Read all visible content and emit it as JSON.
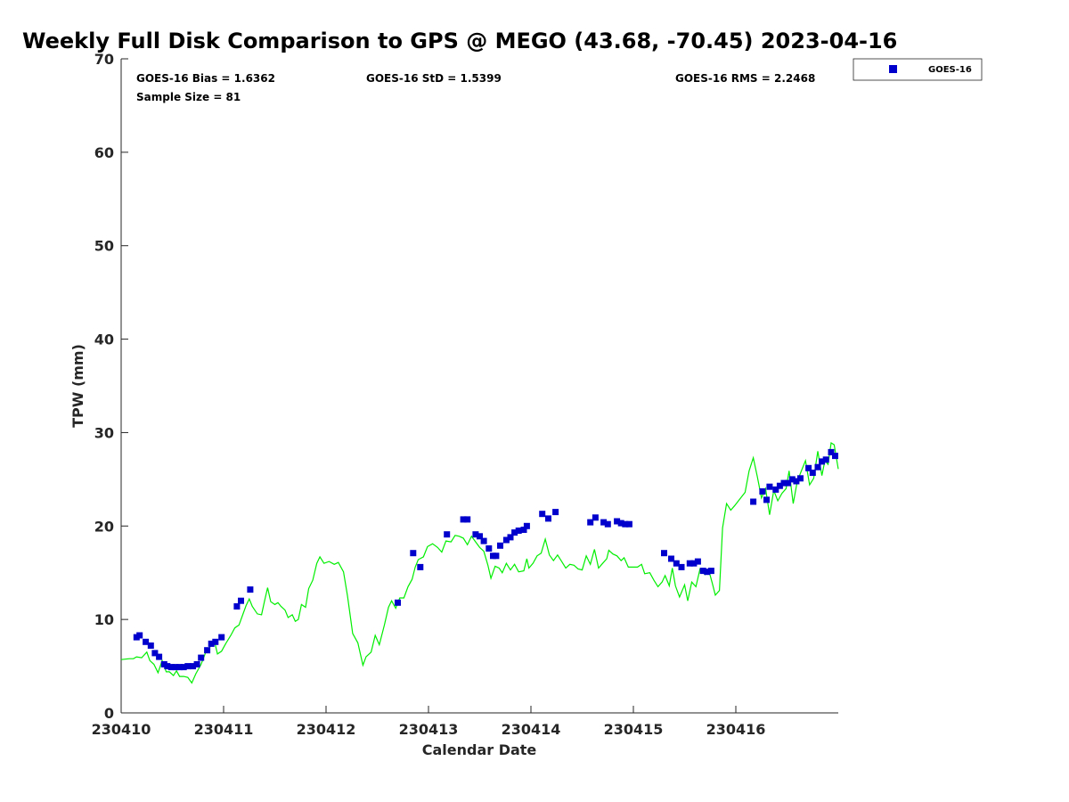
{
  "chart_data": {
    "type": "scatter",
    "title": "Weekly Full Disk Comparison to GPS @ MEGO (43.68, -70.45) 2023-04-16",
    "xlabel": "Calendar Date",
    "ylabel": "TPW (mm)",
    "xlim": [
      230410,
      230417
    ],
    "ylim": [
      0,
      70
    ],
    "x_ticks": [
      {
        "value": 230410,
        "label": "230410"
      },
      {
        "value": 230411,
        "label": "230411"
      },
      {
        "value": 230412,
        "label": "230412"
      },
      {
        "value": 230413,
        "label": "230413"
      },
      {
        "value": 230414,
        "label": "230414"
      },
      {
        "value": 230415,
        "label": "230415"
      },
      {
        "value": 230416,
        "label": "230416"
      }
    ],
    "y_ticks": [
      {
        "value": 0,
        "label": "0"
      },
      {
        "value": 10,
        "label": "10"
      },
      {
        "value": 20,
        "label": "20"
      },
      {
        "value": 30,
        "label": "30"
      },
      {
        "value": 40,
        "label": "40"
      },
      {
        "value": 50,
        "label": "50"
      },
      {
        "value": 60,
        "label": "60"
      },
      {
        "value": 70,
        "label": "70"
      }
    ],
    "stats": {
      "bias": "GOES-16 Bias = 1.6362",
      "std": "GOES-16 StD = 1.5399",
      "rms": "GOES-16 RMS = 2.2468",
      "sample": "Sample Size = 81"
    },
    "legend": {
      "position": "top-right",
      "entries": [
        {
          "label": "GOES-16",
          "color": "#0000cc",
          "marker": "square"
        }
      ]
    },
    "series": [
      {
        "name": "GOES-16",
        "kind": "scatter",
        "color": "#0000cc",
        "points": [
          [
            0.15,
            8.1
          ],
          [
            0.18,
            8.3
          ],
          [
            0.24,
            7.6
          ],
          [
            0.29,
            7.2
          ],
          [
            0.33,
            6.4
          ],
          [
            0.37,
            6.0
          ],
          [
            0.42,
            5.2
          ],
          [
            0.45,
            5.0
          ],
          [
            0.49,
            4.9
          ],
          [
            0.53,
            4.9
          ],
          [
            0.57,
            4.9
          ],
          [
            0.61,
            4.9
          ],
          [
            0.65,
            5.0
          ],
          [
            0.7,
            5.0
          ],
          [
            0.74,
            5.2
          ],
          [
            0.78,
            5.9
          ],
          [
            0.84,
            6.7
          ],
          [
            0.88,
            7.4
          ],
          [
            0.92,
            7.6
          ],
          [
            0.98,
            8.1
          ],
          [
            1.13,
            11.4
          ],
          [
            1.17,
            12.0
          ],
          [
            1.26,
            13.2
          ],
          [
            2.7,
            11.8
          ],
          [
            2.85,
            17.1
          ],
          [
            2.92,
            15.6
          ],
          [
            3.18,
            19.1
          ],
          [
            3.34,
            20.7
          ],
          [
            3.38,
            20.7
          ],
          [
            3.46,
            19.1
          ],
          [
            3.5,
            18.9
          ],
          [
            3.54,
            18.4
          ],
          [
            3.59,
            17.6
          ],
          [
            3.63,
            16.8
          ],
          [
            3.66,
            16.8
          ],
          [
            3.7,
            17.9
          ],
          [
            3.76,
            18.5
          ],
          [
            3.8,
            18.8
          ],
          [
            3.84,
            19.3
          ],
          [
            3.88,
            19.5
          ],
          [
            3.93,
            19.6
          ],
          [
            3.96,
            20.0
          ],
          [
            4.11,
            21.3
          ],
          [
            4.17,
            20.8
          ],
          [
            4.24,
            21.5
          ],
          [
            4.58,
            20.4
          ],
          [
            4.63,
            20.9
          ],
          [
            4.71,
            20.4
          ],
          [
            4.75,
            20.2
          ],
          [
            4.84,
            20.5
          ],
          [
            4.88,
            20.3
          ],
          [
            4.92,
            20.2
          ],
          [
            4.96,
            20.2
          ],
          [
            5.3,
            17.1
          ],
          [
            5.37,
            16.5
          ],
          [
            5.42,
            16.0
          ],
          [
            5.47,
            15.6
          ],
          [
            5.55,
            16.0
          ],
          [
            5.59,
            16.0
          ],
          [
            5.63,
            16.2
          ],
          [
            5.68,
            15.2
          ],
          [
            5.72,
            15.1
          ],
          [
            5.76,
            15.2
          ],
          [
            6.17,
            22.6
          ],
          [
            6.26,
            23.7
          ],
          [
            6.3,
            22.8
          ],
          [
            6.33,
            24.2
          ],
          [
            6.39,
            23.9
          ],
          [
            6.43,
            24.3
          ],
          [
            6.47,
            24.6
          ],
          [
            6.51,
            24.6
          ],
          [
            6.55,
            25.0
          ],
          [
            6.59,
            24.8
          ],
          [
            6.63,
            25.1
          ],
          [
            6.71,
            26.2
          ],
          [
            6.75,
            25.7
          ],
          [
            6.8,
            26.3
          ],
          [
            6.84,
            26.9
          ],
          [
            6.88,
            27.1
          ],
          [
            6.93,
            27.9
          ],
          [
            6.97,
            27.5
          ]
        ]
      },
      {
        "name": "GPS",
        "kind": "line",
        "color": "#00ee00",
        "points": [
          [
            0.0,
            5.7
          ],
          [
            0.08,
            5.8
          ],
          [
            0.12,
            5.8
          ],
          [
            0.15,
            6.0
          ],
          [
            0.2,
            5.9
          ],
          [
            0.25,
            6.5
          ],
          [
            0.28,
            5.6
          ],
          [
            0.32,
            5.2
          ],
          [
            0.36,
            4.3
          ],
          [
            0.4,
            5.6
          ],
          [
            0.44,
            4.4
          ],
          [
            0.47,
            4.4
          ],
          [
            0.51,
            4.0
          ],
          [
            0.54,
            4.5
          ],
          [
            0.57,
            3.9
          ],
          [
            0.61,
            3.9
          ],
          [
            0.65,
            3.8
          ],
          [
            0.69,
            3.2
          ],
          [
            0.73,
            4.2
          ],
          [
            0.78,
            5.2
          ],
          [
            0.83,
            6.6
          ],
          [
            0.87,
            7.1
          ],
          [
            0.91,
            7.7
          ],
          [
            0.94,
            6.3
          ],
          [
            0.98,
            6.6
          ],
          [
            1.02,
            7.4
          ],
          [
            1.07,
            8.3
          ],
          [
            1.11,
            9.1
          ],
          [
            1.15,
            9.4
          ],
          [
            1.18,
            10.3
          ],
          [
            1.22,
            11.5
          ],
          [
            1.25,
            12.2
          ],
          [
            1.28,
            11.4
          ],
          [
            1.33,
            10.6
          ],
          [
            1.37,
            10.5
          ],
          [
            1.4,
            12.0
          ],
          [
            1.43,
            13.4
          ],
          [
            1.46,
            11.9
          ],
          [
            1.5,
            11.6
          ],
          [
            1.53,
            11.8
          ],
          [
            1.56,
            11.4
          ],
          [
            1.6,
            11.0
          ],
          [
            1.63,
            10.2
          ],
          [
            1.67,
            10.5
          ],
          [
            1.7,
            9.8
          ],
          [
            1.73,
            10.0
          ],
          [
            1.76,
            11.6
          ],
          [
            1.8,
            11.3
          ],
          [
            1.83,
            13.3
          ],
          [
            1.87,
            14.2
          ],
          [
            1.91,
            16.0
          ],
          [
            1.94,
            16.7
          ],
          [
            1.98,
            16.0
          ],
          [
            2.03,
            16.2
          ],
          [
            2.08,
            15.9
          ],
          [
            2.12,
            16.1
          ],
          [
            2.17,
            15.1
          ],
          [
            2.21,
            12.5
          ],
          [
            2.26,
            8.5
          ],
          [
            2.31,
            7.5
          ],
          [
            2.36,
            5.1
          ],
          [
            2.39,
            6.0
          ],
          [
            2.44,
            6.5
          ],
          [
            2.48,
            8.3
          ],
          [
            2.52,
            7.3
          ],
          [
            2.57,
            9.4
          ],
          [
            2.61,
            11.3
          ],
          [
            2.64,
            12.0
          ],
          [
            2.68,
            11.2
          ],
          [
            2.72,
            12.3
          ],
          [
            2.76,
            12.3
          ],
          [
            2.8,
            13.5
          ],
          [
            2.84,
            14.3
          ],
          [
            2.87,
            15.6
          ],
          [
            2.9,
            16.4
          ],
          [
            2.95,
            16.7
          ],
          [
            2.99,
            17.8
          ],
          [
            3.04,
            18.1
          ],
          [
            3.09,
            17.7
          ],
          [
            3.13,
            17.2
          ],
          [
            3.17,
            18.4
          ],
          [
            3.22,
            18.3
          ],
          [
            3.26,
            19.0
          ],
          [
            3.3,
            18.9
          ],
          [
            3.34,
            18.7
          ],
          [
            3.38,
            18.0
          ],
          [
            3.42,
            18.9
          ],
          [
            3.46,
            18.3
          ],
          [
            3.5,
            17.7
          ],
          [
            3.54,
            17.3
          ],
          [
            3.58,
            15.8
          ],
          [
            3.61,
            14.4
          ],
          [
            3.65,
            15.7
          ],
          [
            3.69,
            15.5
          ],
          [
            3.72,
            15.0
          ],
          [
            3.76,
            16.0
          ],
          [
            3.8,
            15.3
          ],
          [
            3.84,
            15.9
          ],
          [
            3.88,
            15.1
          ],
          [
            3.93,
            15.2
          ],
          [
            3.96,
            16.5
          ],
          [
            3.98,
            15.5
          ],
          [
            4.02,
            16.0
          ],
          [
            4.06,
            16.8
          ],
          [
            4.1,
            17.1
          ],
          [
            4.14,
            18.6
          ],
          [
            4.18,
            16.9
          ],
          [
            4.22,
            16.3
          ],
          [
            4.26,
            16.9
          ],
          [
            4.3,
            16.2
          ],
          [
            4.34,
            15.5
          ],
          [
            4.38,
            15.9
          ],
          [
            4.42,
            15.8
          ],
          [
            4.46,
            15.4
          ],
          [
            4.5,
            15.3
          ],
          [
            4.54,
            16.8
          ],
          [
            4.58,
            15.9
          ],
          [
            4.62,
            17.5
          ],
          [
            4.66,
            15.5
          ],
          [
            4.7,
            16.0
          ],
          [
            4.74,
            16.5
          ],
          [
            4.76,
            17.4
          ],
          [
            4.8,
            17.0
          ],
          [
            4.84,
            16.8
          ],
          [
            4.88,
            16.3
          ],
          [
            4.91,
            16.6
          ],
          [
            4.95,
            15.6
          ],
          [
            5.0,
            15.6
          ],
          [
            5.04,
            15.6
          ],
          [
            5.08,
            15.9
          ],
          [
            5.11,
            14.9
          ],
          [
            5.16,
            15.0
          ],
          [
            5.2,
            14.2
          ],
          [
            5.24,
            13.5
          ],
          [
            5.28,
            14.0
          ],
          [
            5.31,
            14.7
          ],
          [
            5.35,
            13.6
          ],
          [
            5.38,
            15.5
          ],
          [
            5.41,
            13.6
          ],
          [
            5.45,
            12.4
          ],
          [
            5.5,
            13.7
          ],
          [
            5.53,
            12.0
          ],
          [
            5.57,
            14.0
          ],
          [
            5.61,
            13.5
          ],
          [
            5.65,
            15.4
          ],
          [
            5.7,
            14.8
          ],
          [
            5.74,
            15.1
          ],
          [
            5.77,
            13.9
          ],
          [
            5.8,
            12.6
          ],
          [
            5.84,
            13.1
          ],
          [
            5.87,
            19.8
          ],
          [
            5.91,
            22.4
          ],
          [
            5.95,
            21.7
          ],
          [
            5.99,
            22.2
          ],
          [
            6.04,
            22.9
          ],
          [
            6.09,
            23.6
          ],
          [
            6.13,
            25.9
          ],
          [
            6.17,
            27.3
          ],
          [
            6.21,
            25.3
          ],
          [
            6.25,
            23.0
          ],
          [
            6.29,
            24.0
          ],
          [
            6.33,
            21.2
          ],
          [
            6.37,
            23.8
          ],
          [
            6.41,
            22.7
          ],
          [
            6.45,
            23.5
          ],
          [
            6.49,
            24.0
          ],
          [
            6.52,
            25.9
          ],
          [
            6.56,
            22.4
          ],
          [
            6.6,
            24.8
          ],
          [
            6.64,
            25.9
          ],
          [
            6.68,
            27.0
          ],
          [
            6.72,
            24.4
          ],
          [
            6.76,
            25.1
          ],
          [
            6.8,
            28.0
          ],
          [
            6.84,
            25.4
          ],
          [
            6.87,
            27.0
          ],
          [
            6.9,
            26.6
          ],
          [
            6.93,
            28.9
          ],
          [
            6.96,
            28.7
          ],
          [
            7.0,
            26.1
          ]
        ]
      }
    ]
  }
}
